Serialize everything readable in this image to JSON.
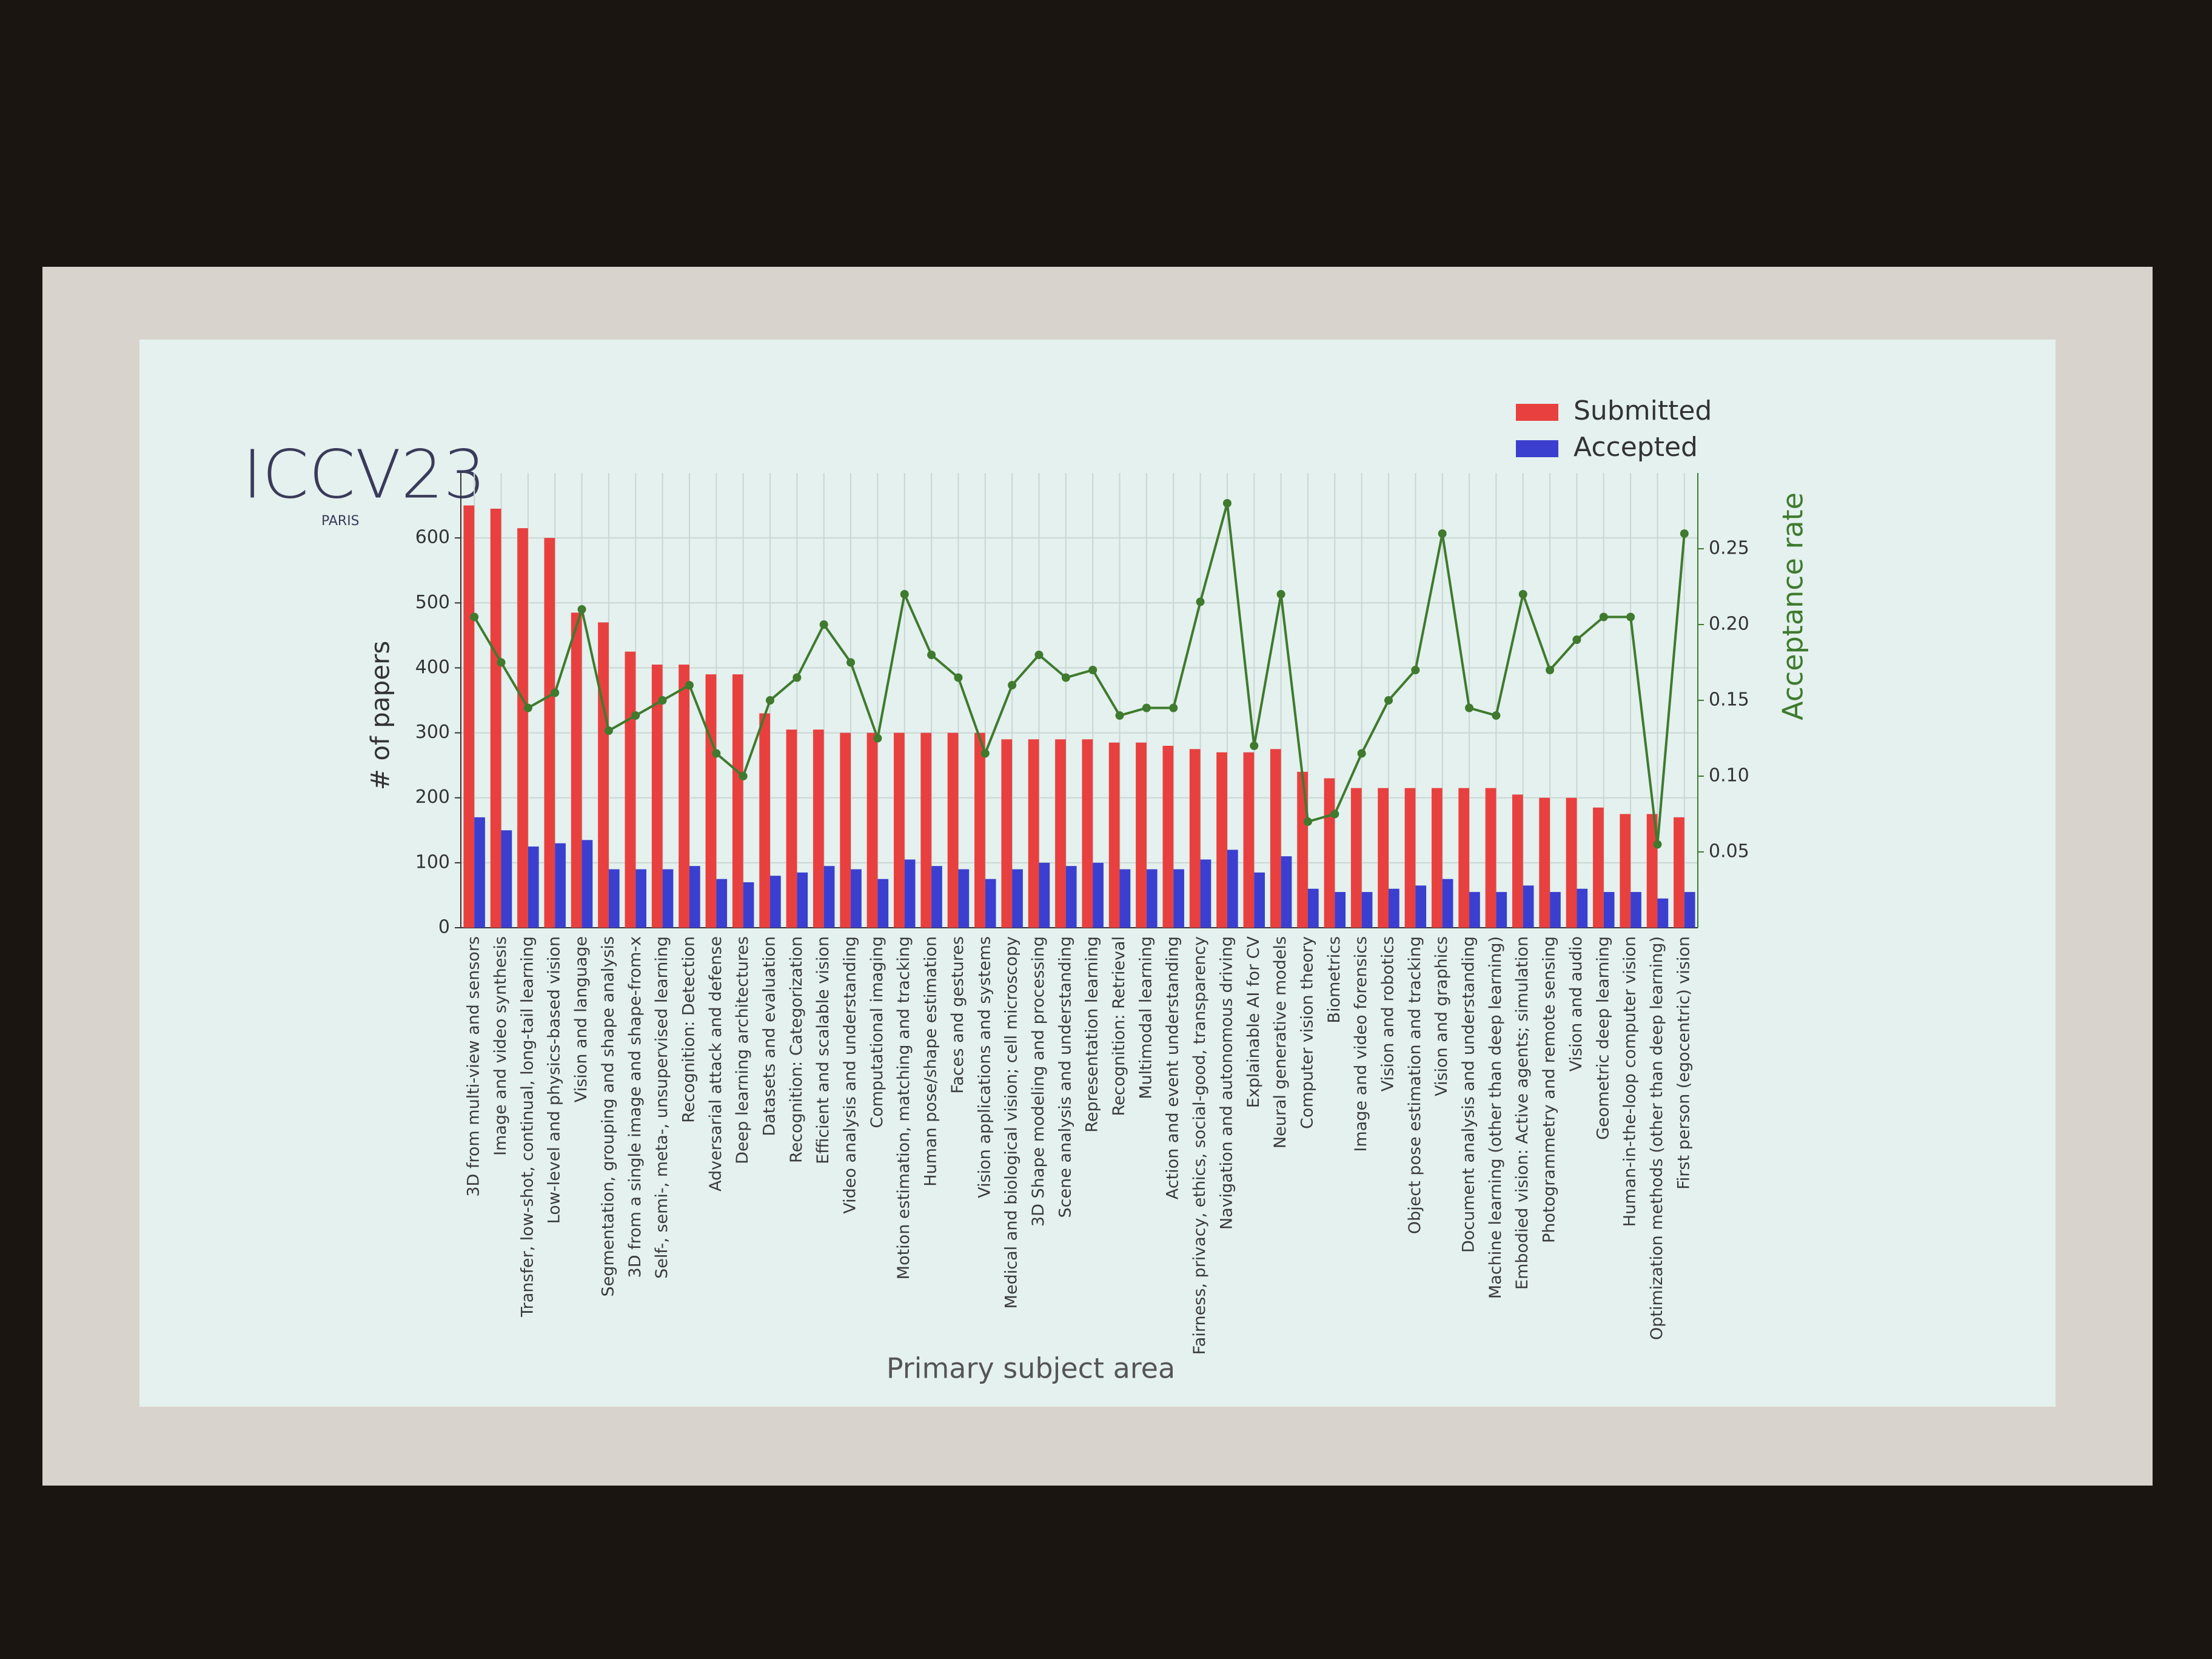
{
  "logo": {
    "text": "ICCV23",
    "subtext": "PARIS"
  },
  "chart_data": {
    "type": "bar",
    "x_label": "Primary subject area",
    "y_label": "# of papers",
    "y2_label": "Acceptance rate",
    "grid": true,
    "legend": "upper right",
    "categories": [
      "3D from multi-view and sensors",
      "Image and video synthesis",
      "Transfer, low-shot, continual, long-tail learning",
      "Low-level and physics-based vision",
      "Vision and language",
      "Segmentation, grouping and shape analysis",
      "3D from a single image and shape-from-x",
      "Self-, semi-, meta-, unsupervised learning",
      "Recognition: Detection",
      "Adversarial attack and defense",
      "Deep learning architectures",
      "Datasets and evaluation",
      "Recognition: Categorization",
      "Efficient and scalable vision",
      "Video analysis and understanding",
      "Computational imaging",
      "Motion estimation, matching and tracking",
      "Human pose/shape estimation",
      "Faces and gestures",
      "Vision applications and systems",
      "Medical and biological vision; cell microscopy",
      "3D Shape modeling and processing",
      "Scene analysis and understanding",
      "Representation learning",
      "Recognition: Retrieval",
      "Multimodal learning",
      "Action and event understanding",
      "Fairness, privacy, ethics, social-good, transparency",
      "Navigation and autonomous driving",
      "Explainable AI for CV",
      "Neural generative models",
      "Computer vision theory",
      "Biometrics",
      "Image and video forensics",
      "Vision and robotics",
      "Object pose estimation and tracking",
      "Vision and graphics",
      "Document analysis and understanding",
      "Machine learning (other than deep learning)",
      "Embodied vision: Active agents; simulation",
      "Photogrammetry and remote sensing",
      "Vision and audio",
      "Geometric deep learning",
      "Human-in-the-loop computer vision",
      "Optimization methods (other than deep learning)",
      "First person (egocentric) vision"
    ],
    "series": [
      {
        "name": "Submitted",
        "color": "#e8403f",
        "values": [
          650,
          645,
          615,
          600,
          485,
          470,
          425,
          405,
          405,
          390,
          390,
          330,
          305,
          305,
          300,
          300,
          300,
          300,
          300,
          300,
          290,
          290,
          290,
          290,
          285,
          285,
          280,
          275,
          270,
          270,
          275,
          240,
          230,
          215,
          215,
          215,
          215,
          215,
          215,
          205,
          200,
          200,
          185,
          175,
          175,
          170
        ]
      },
      {
        "name": "Accepted",
        "color": "#3b3fd0",
        "values": [
          170,
          150,
          125,
          130,
          135,
          90,
          90,
          90,
          95,
          75,
          70,
          80,
          85,
          95,
          90,
          75,
          105,
          95,
          90,
          75,
          90,
          100,
          95,
          100,
          90,
          90,
          90,
          105,
          120,
          85,
          110,
          60,
          55,
          55,
          60,
          65,
          75,
          55,
          55,
          65,
          55,
          60,
          55,
          55,
          45,
          55
        ]
      },
      {
        "type": "line",
        "axis": "y2",
        "color": "#3f7a2e",
        "values": [
          0.205,
          0.175,
          0.145,
          0.155,
          0.21,
          0.13,
          0.14,
          0.15,
          0.16,
          0.115,
          0.1,
          0.15,
          0.165,
          0.2,
          0.175,
          0.125,
          0.22,
          0.18,
          0.165,
          0.115,
          0.16,
          0.18,
          0.165,
          0.17,
          0.14,
          0.145,
          0.145,
          0.215,
          0.28,
          0.12,
          0.22,
          0.07,
          0.075,
          0.115,
          0.15,
          0.17,
          0.26,
          0.145,
          0.14,
          0.22,
          0.17,
          0.19,
          0.205,
          0.205,
          0.055,
          0.26
        ]
      }
    ],
    "ylim": [
      0,
      700
    ],
    "yticks": [
      0,
      100,
      200,
      300,
      400,
      500,
      600
    ],
    "y2lim": [
      0,
      0.3
    ],
    "y2ticks": [
      0.05,
      {
        "value": 0.1,
        "label": "0.10"
      },
      0.15,
      {
        "value": 0.2,
        "label": "0.20"
      },
      0.25
    ]
  }
}
